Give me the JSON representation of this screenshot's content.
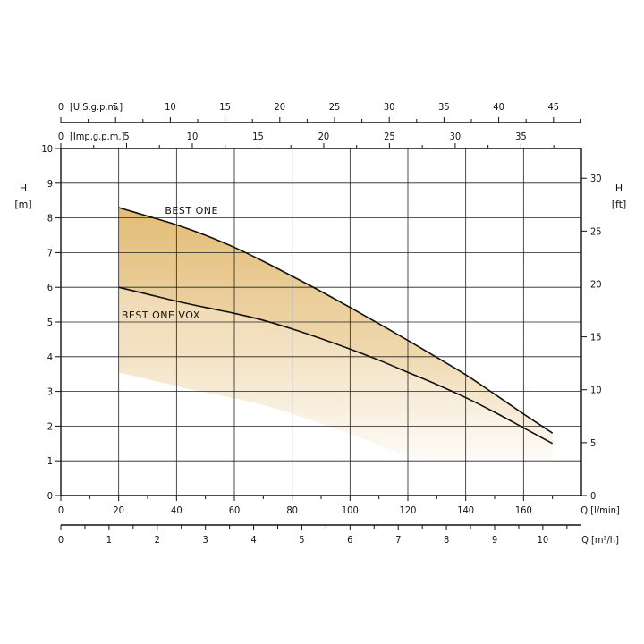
{
  "chart_data": {
    "type": "line",
    "series": [
      {
        "name": "BEST ONE",
        "x": [
          20,
          30,
          40,
          50,
          60,
          70,
          80,
          90,
          100,
          110,
          120,
          130,
          140,
          150,
          160,
          170
        ],
        "y": [
          8.3,
          8.05,
          7.8,
          7.5,
          7.15,
          6.75,
          6.32,
          5.88,
          5.42,
          4.95,
          4.47,
          3.98,
          3.48,
          2.92,
          2.35,
          1.8
        ]
      },
      {
        "name": "BEST ONE VOX",
        "x": [
          20,
          30,
          40,
          50,
          60,
          70,
          80,
          90,
          100,
          110,
          120,
          130,
          140,
          150,
          160,
          170
        ],
        "y": [
          6.0,
          5.8,
          5.6,
          5.42,
          5.25,
          5.05,
          4.8,
          4.52,
          4.22,
          3.9,
          3.55,
          3.2,
          2.82,
          2.4,
          1.95,
          1.5
        ]
      }
    ],
    "axes": {
      "q_lmin": {
        "label": "Q [l/min]",
        "ticks": [
          "0",
          "20",
          "40",
          "60",
          "80",
          "100",
          "120",
          "140",
          "160"
        ],
        "range": [
          0,
          180
        ]
      },
      "q_m3h": {
        "label": "Q [m³/h]",
        "ticks": [
          "0",
          "1",
          "2",
          "3",
          "4",
          "5",
          "6",
          "7",
          "8",
          "9",
          "10"
        ],
        "range": [
          0,
          10.8
        ]
      },
      "usgpm": {
        "label": "[U.S.g.p.m.]",
        "ticks": [
          "0",
          "5",
          "10",
          "15",
          "20",
          "25",
          "30",
          "35",
          "40",
          "45"
        ],
        "range": [
          0,
          47.55
        ]
      },
      "impgpm": {
        "label": "[Imp.g.p.m.]",
        "ticks": [
          "0",
          "5",
          "10",
          "15",
          "20",
          "25",
          "30",
          "35"
        ],
        "range": [
          0,
          39.6
        ]
      },
      "h_m": {
        "label_top": "H",
        "label_unit": "[m]",
        "ticks": [
          "0",
          "1",
          "2",
          "3",
          "4",
          "5",
          "6",
          "7",
          "8",
          "9",
          "10"
        ],
        "range": [
          0,
          10
        ]
      },
      "h_ft": {
        "label_top": "H",
        "label_unit": "[ft]",
        "ticks": [
          "0",
          "5",
          "10",
          "15",
          "20",
          "25",
          "30"
        ],
        "range": [
          0,
          32.81
        ]
      }
    },
    "grid": true,
    "colors": {
      "fill": "#e2b96f",
      "line": "#111111",
      "grid": "#222222"
    }
  }
}
